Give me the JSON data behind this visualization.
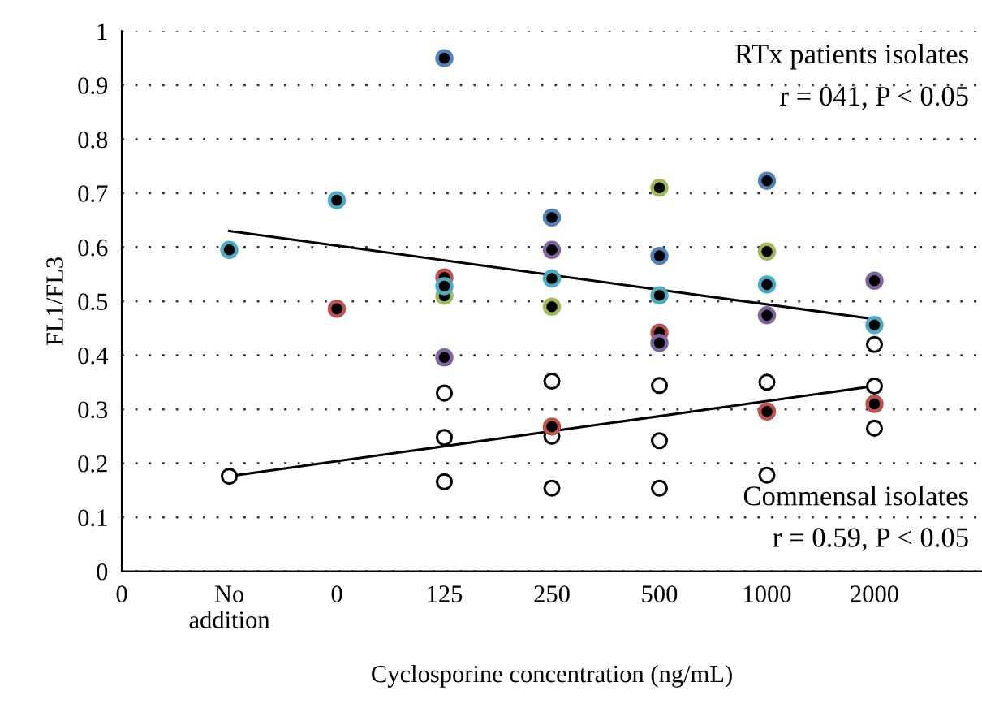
{
  "chart_data": {
    "type": "scatter",
    "xlabel": "Cyclosporine concentration (ng/mL)",
    "ylabel": "FL1/FL3",
    "categories": [
      "0",
      "No\naddition",
      "0",
      "125",
      "250",
      "500",
      "1000",
      "2000"
    ],
    "ylim": [
      0,
      1
    ],
    "yticks": [
      0,
      0.1,
      0.2,
      0.3,
      0.4,
      0.5,
      0.6,
      0.7,
      0.8,
      0.9,
      1
    ],
    "grid": "y",
    "marker": "circle",
    "series": [
      {
        "color": "#4f81bd",
        "values": [
          null,
          null,
          null,
          0.95,
          0.655,
          0.584,
          0.723,
          null
        ]
      },
      {
        "color": "#8064a2",
        "values": [
          null,
          null,
          null,
          0.396,
          0.595,
          0.423,
          0.474,
          0.538
        ]
      },
      {
        "color": "#4bacc6",
        "values": [
          null,
          0.595,
          0.687,
          0.528,
          0.542,
          0.511,
          0.531,
          0.456
        ]
      },
      {
        "color": "#9bbb59",
        "values": [
          null,
          null,
          null,
          0.51,
          0.49,
          0.71,
          0.592,
          null
        ]
      },
      {
        "color": "#c0504d",
        "values": [
          null,
          null,
          0.486,
          0.544,
          0.268,
          0.442,
          0.296,
          0.31
        ]
      },
      {
        "color": "#000000",
        "values": [
          null,
          0.176,
          null,
          0.33,
          0.352,
          0.344,
          0.35,
          0.42
        ]
      },
      {
        "color": "#000000",
        "values": [
          null,
          null,
          null,
          0.248,
          0.25,
          0.242,
          0.178,
          0.343
        ]
      },
      {
        "color": "#000000",
        "values": [
          null,
          null,
          null,
          0.166,
          0.154,
          0.154,
          null,
          0.265
        ]
      },
      {
        "type": "line",
        "color": "#000000",
        "marker": "none",
        "values": [
          null,
          0.63,
          null,
          null,
          null,
          null,
          null,
          0.467
        ]
      },
      {
        "type": "line",
        "color": "#000000",
        "marker": "none",
        "values": [
          null,
          0.176,
          null,
          null,
          null,
          null,
          null,
          0.343
        ]
      }
    ],
    "annotations": [
      "RTx patients isolates",
      "r = 041, P < 0.05",
      "Commensal isolates",
      "r = 0.59, P < 0.05"
    ]
  }
}
